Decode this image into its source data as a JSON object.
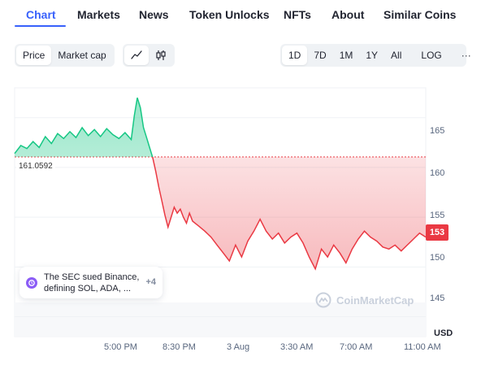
{
  "tabs": [
    {
      "label": "Chart",
      "active": true
    },
    {
      "label": "Markets"
    },
    {
      "label": "News"
    },
    {
      "label": "Token Unlocks"
    },
    {
      "label": "NFTs"
    },
    {
      "label": "About"
    },
    {
      "label": "Similar Coins"
    }
  ],
  "controls": {
    "metric_price": "Price",
    "metric_market_cap": "Market cap",
    "line_icon": "line-chart-icon",
    "candle_icon": "candlestick-icon",
    "ranges": [
      "1D",
      "7D",
      "1M",
      "1Y",
      "All"
    ],
    "log_label": "LOG",
    "more_label": "···"
  },
  "chart": {
    "reference_price_label": "161.0592",
    "current_price_label": "153",
    "currency_label": "USD",
    "x_ticks": [
      "5:00 PM",
      "8:30 PM",
      "3 Aug",
      "3:30 AM",
      "7:00 AM",
      "11:00 AM"
    ],
    "y_ticks": [
      "165",
      "160",
      "155",
      "150",
      "145"
    ],
    "colors": {
      "up": "#16c784",
      "down": "#ea3943",
      "accent": "#3861fb"
    }
  },
  "news": {
    "text": "The SEC sued Binance, defining SOL, ADA, ...",
    "more": "+4",
    "icon": "news-event-icon"
  },
  "watermark": {
    "text": "CoinMarketCap",
    "icon": "coinmarketcap-logo-icon"
  },
  "chart_data": {
    "type": "area",
    "ylim": [
      143,
      168
    ],
    "baseline": 161.0592,
    "y_ticks": [
      145,
      150,
      155,
      160,
      165
    ],
    "series": [
      {
        "values": [
          [
            0,
            161.4
          ],
          [
            2,
            162.2
          ],
          [
            4,
            161.9
          ],
          [
            6,
            162.6
          ],
          [
            8,
            162.0
          ],
          [
            10,
            163.1
          ],
          [
            12,
            162.4
          ],
          [
            14,
            163.4
          ],
          [
            16,
            162.9
          ],
          [
            18,
            163.6
          ],
          [
            20,
            163.0
          ],
          [
            22,
            164.0
          ],
          [
            24,
            163.2
          ],
          [
            26,
            163.8
          ],
          [
            28,
            163.1
          ],
          [
            30,
            163.9
          ],
          [
            32,
            163.3
          ],
          [
            34,
            162.9
          ],
          [
            36,
            163.5
          ],
          [
            38,
            162.8
          ],
          [
            39,
            165.2
          ],
          [
            40,
            167.0
          ],
          [
            41,
            166.0
          ],
          [
            42,
            164.0
          ],
          [
            43,
            163.0
          ],
          [
            44,
            162.0
          ],
          [
            45,
            161.0
          ],
          [
            46,
            159.6
          ],
          [
            47,
            158.0
          ],
          [
            48,
            156.6
          ],
          [
            49,
            155.2
          ],
          [
            50,
            154.0
          ],
          [
            51,
            155.0
          ],
          [
            52,
            156.0
          ],
          [
            53,
            155.4
          ],
          [
            54,
            155.8
          ],
          [
            55,
            155.0
          ],
          [
            56,
            154.4
          ],
          [
            57,
            155.4
          ],
          [
            58,
            154.6
          ],
          [
            60,
            154.1
          ],
          [
            62,
            153.6
          ],
          [
            64,
            153.0
          ],
          [
            66,
            152.2
          ],
          [
            68,
            151.4
          ],
          [
            70,
            150.6
          ],
          [
            72,
            152.2
          ],
          [
            74,
            151.0
          ],
          [
            76,
            152.6
          ],
          [
            78,
            153.6
          ],
          [
            80,
            154.8
          ],
          [
            82,
            153.6
          ],
          [
            84,
            152.8
          ],
          [
            86,
            153.4
          ],
          [
            88,
            152.4
          ],
          [
            90,
            153.0
          ],
          [
            92,
            153.4
          ],
          [
            94,
            152.4
          ],
          [
            96,
            151.0
          ],
          [
            98,
            149.8
          ],
          [
            100,
            151.8
          ],
          [
            102,
            151.0
          ],
          [
            104,
            152.2
          ],
          [
            106,
            151.4
          ],
          [
            108,
            150.4
          ],
          [
            110,
            151.8
          ],
          [
            112,
            152.8
          ],
          [
            114,
            153.6
          ],
          [
            116,
            153.0
          ],
          [
            118,
            152.6
          ],
          [
            120,
            152.0
          ],
          [
            122,
            151.8
          ],
          [
            124,
            152.2
          ],
          [
            126,
            151.6
          ],
          [
            128,
            152.2
          ],
          [
            130,
            152.8
          ],
          [
            132,
            153.4
          ],
          [
            134,
            153.0
          ]
        ]
      }
    ]
  }
}
